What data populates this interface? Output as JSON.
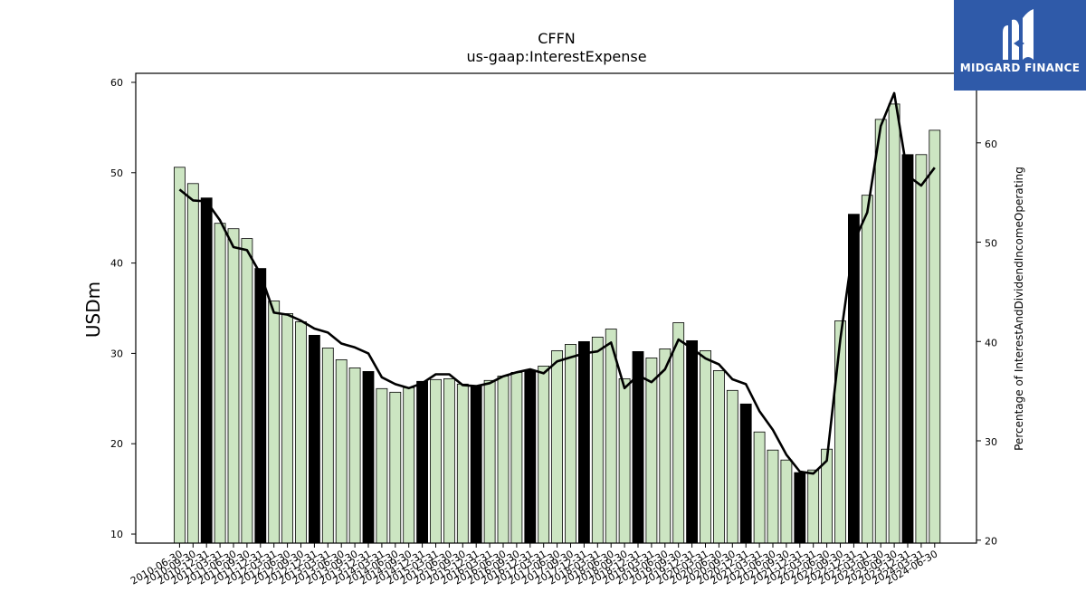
{
  "chart_data": {
    "type": "bar",
    "title": "CFFN",
    "subtitle": "us-gaap:InterestExpense",
    "ylabel": "USDm",
    "y2label": "Percentage of InterestAndDividendIncomeOperating",
    "ylim": [
      9,
      61
    ],
    "y2lim": [
      19.7,
      67
    ],
    "yticks": [
      10,
      20,
      30,
      40,
      50,
      60
    ],
    "y2ticks": [
      20,
      30,
      40,
      50,
      60
    ],
    "grid": false,
    "categories": [
      "2010-06-30",
      "2010-09-30",
      "2010-12-31",
      "2011-03-31",
      "2011-06-30",
      "2011-09-30",
      "2011-12-31",
      "2012-03-31",
      "2012-06-30",
      "2012-09-30",
      "2012-12-31",
      "2013-03-31",
      "2013-06-30",
      "2013-09-30",
      "2013-12-31",
      "2014-03-31",
      "2014-06-30",
      "2014-09-30",
      "2014-12-31",
      "2015-03-31",
      "2015-06-30",
      "2015-09-30",
      "2015-12-31",
      "2016-03-31",
      "2016-06-30",
      "2016-09-30",
      "2016-12-31",
      "2017-03-31",
      "2017-06-30",
      "2017-09-30",
      "2017-12-31",
      "2018-03-31",
      "2018-06-30",
      "2018-09-30",
      "2018-12-31",
      "2019-03-31",
      "2019-06-30",
      "2019-09-30",
      "2019-12-31",
      "2020-03-31",
      "2020-06-30",
      "2020-09-30",
      "2020-12-31",
      "2021-03-31",
      "2021-06-30",
      "2021-09-30",
      "2021-12-31",
      "2022-03-31",
      "2022-06-30",
      "2022-09-30",
      "2022-12-31",
      "2023-03-31",
      "2023-06-30",
      "2023-09-30",
      "2023-12-31",
      "2024-03-31",
      "2024-06-30"
    ],
    "series": [
      {
        "type": "bar",
        "axis": "left",
        "values": [
          50.6,
          48.8,
          47.2,
          44.4,
          43.8,
          42.7,
          39.4,
          35.8,
          34.4,
          33.5,
          32.0,
          30.6,
          29.3,
          28.4,
          28.0,
          26.1,
          25.7,
          26.2,
          26.9,
          27.1,
          27.2,
          26.6,
          26.4,
          27.0,
          27.5,
          27.9,
          28.1,
          28.6,
          30.3,
          31.0,
          31.3,
          31.8,
          32.7,
          27.2,
          30.2,
          29.5,
          30.5,
          33.4,
          31.4,
          30.3,
          28.1,
          25.9,
          24.4,
          21.3,
          19.3,
          18.2,
          16.8,
          17.1,
          19.4,
          33.6,
          45.4,
          47.5,
          55.9,
          57.6,
          52.0,
          52.0,
          54.7
        ],
        "highlight": [
          false,
          false,
          true,
          false,
          false,
          false,
          true,
          false,
          false,
          false,
          true,
          false,
          false,
          false,
          true,
          false,
          false,
          false,
          true,
          false,
          false,
          false,
          true,
          false,
          false,
          false,
          true,
          false,
          false,
          false,
          true,
          false,
          false,
          false,
          true,
          false,
          false,
          false,
          true,
          false,
          false,
          false,
          true,
          false,
          false,
          false,
          true,
          false,
          false,
          false,
          true,
          false,
          false,
          false,
          true,
          false,
          false
        ],
        "color": "#cce5c2",
        "highlight_color": "#000000"
      },
      {
        "type": "line",
        "axis": "right",
        "values": [
          55.3,
          54.2,
          54.1,
          52.2,
          49.5,
          49.2,
          46.8,
          42.9,
          42.7,
          42.1,
          41.3,
          40.9,
          39.8,
          39.4,
          38.8,
          36.4,
          35.7,
          35.3,
          35.8,
          36.7,
          36.7,
          35.6,
          35.5,
          35.8,
          36.5,
          36.9,
          37.2,
          36.8,
          38.0,
          38.4,
          38.8,
          39.0,
          39.9,
          35.3,
          36.6,
          35.9,
          37.2,
          40.2,
          39.3,
          38.3,
          37.7,
          36.2,
          35.7,
          33.0,
          31.1,
          28.6,
          26.9,
          26.7,
          28.0,
          40.2,
          50.0,
          53.0,
          61.7,
          65.0,
          56.7,
          55.7,
          57.5
        ],
        "color": "#000000"
      }
    ]
  },
  "logo": {
    "text": "MIDGARD FINANCE",
    "background": "#2f5aa9"
  }
}
